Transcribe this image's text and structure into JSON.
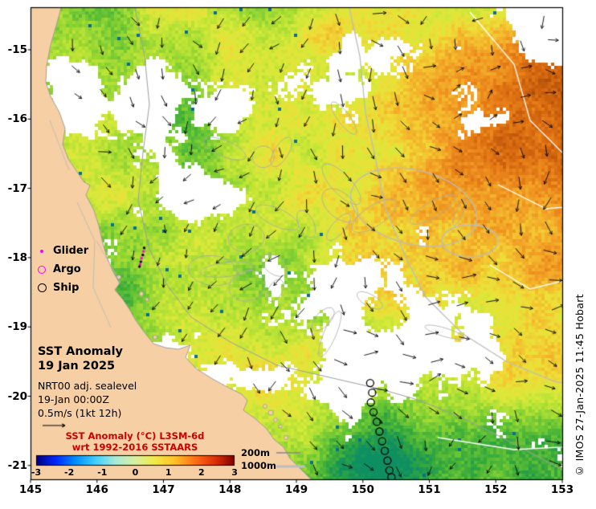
{
  "figure": {
    "title_line1": "SST Anomaly",
    "title_line2": "19 Jan 2025",
    "info_line1": "NRT00 adj. sealevel",
    "info_line2": "19-Jan 00:00Z",
    "info_line3": "0.5m/s (1kt 12h)",
    "credit": "© IMOS 27-Jan-2025 11:45 Hobart"
  },
  "legend": {
    "items": [
      {
        "label": "Glider",
        "marker": "magenta-dot"
      },
      {
        "label": "Argo",
        "marker": "magenta-circle"
      },
      {
        "label": "Ship",
        "marker": "black-circle"
      }
    ]
  },
  "colorbar": {
    "title_line1": "SST Anomaly (°C) L3SM-6d",
    "title_line2": "wrt 1992-2016 SSTAARS",
    "title_color": "#cc0000",
    "ticks": [
      "-3",
      "-2",
      "-1",
      "0",
      "1",
      "2",
      "3"
    ],
    "stops": [
      "#00007f",
      "#0028ff",
      "#0090ff",
      "#40d0ff",
      "#a8ecd8",
      "#d8f0a0",
      "#f4ea44",
      "#ffc028",
      "#ff7014",
      "#e03008",
      "#800000"
    ]
  },
  "depth_legend": {
    "items": [
      {
        "label": "200m"
      },
      {
        "label": "1000m"
      }
    ]
  },
  "axes": {
    "x_ticks": [
      "145",
      "146",
      "147",
      "148",
      "149",
      "150",
      "151",
      "152",
      "153"
    ],
    "y_ticks": [
      "-15",
      "-16",
      "-17",
      "-18",
      "-19",
      "-20",
      "-21"
    ]
  },
  "colors": {
    "land": "#f6cfa4",
    "coast_outline": "#999999",
    "contour_200m": "#9e9e9e",
    "contour_1000m": "#bcbcbc",
    "contour_white": "#ffffff",
    "arrow": "#000000",
    "glider": "#ff00ff",
    "argo": "#ff00ff",
    "ship": "#000000",
    "cloud": "#ffffff"
  },
  "chart_data": {
    "type": "heatmap",
    "title": "SST Anomaly 19 Jan 2025",
    "analysis": "NRT00 adj. sealevel",
    "valid_time": "19-Jan 00:00Z",
    "vector_scale": "0.5m/s (1kt 12h)",
    "x_ticks": [
      145,
      146,
      147,
      148,
      149,
      150,
      151,
      152,
      153
    ],
    "y_ticks": [
      -15,
      -16,
      -17,
      -18,
      -19,
      -20,
      -21
    ],
    "x_range": [
      144.95,
      153.05
    ],
    "y_range": [
      -21.25,
      -14.42
    ],
    "colorbar_label": "SST Anomaly (°C) L3SM-6d wrt 1992-2016 SSTAARS",
    "colorbar_ticks": [
      -3,
      -2,
      -1,
      0,
      1,
      2,
      3
    ],
    "colorbar_range": [
      -3,
      3
    ],
    "isobaths_m": [
      200,
      1000
    ],
    "overlays": [
      "surface current vectors",
      "200m and 1000m isobaths",
      "glider track",
      "ship track"
    ],
    "ship_track_lon_lat": [
      [
        150.11,
        -19.81
      ],
      [
        150.14,
        -19.95
      ],
      [
        150.12,
        -20.09
      ],
      [
        150.16,
        -20.23
      ],
      [
        150.21,
        -20.37
      ],
      [
        150.25,
        -20.51
      ],
      [
        150.29,
        -20.65
      ],
      [
        150.33,
        -20.79
      ],
      [
        150.37,
        -20.93
      ],
      [
        150.4,
        -21.07
      ],
      [
        150.43,
        -21.17
      ]
    ],
    "glider_track_lon_lat": [
      [
        146.71,
        -17.86
      ],
      [
        146.7,
        -17.91
      ],
      [
        146.69,
        -17.96
      ],
      [
        146.67,
        -18.01
      ],
      [
        146.66,
        -18.06
      ],
      [
        146.65,
        -18.1
      ],
      [
        146.64,
        -18.13
      ]
    ]
  }
}
